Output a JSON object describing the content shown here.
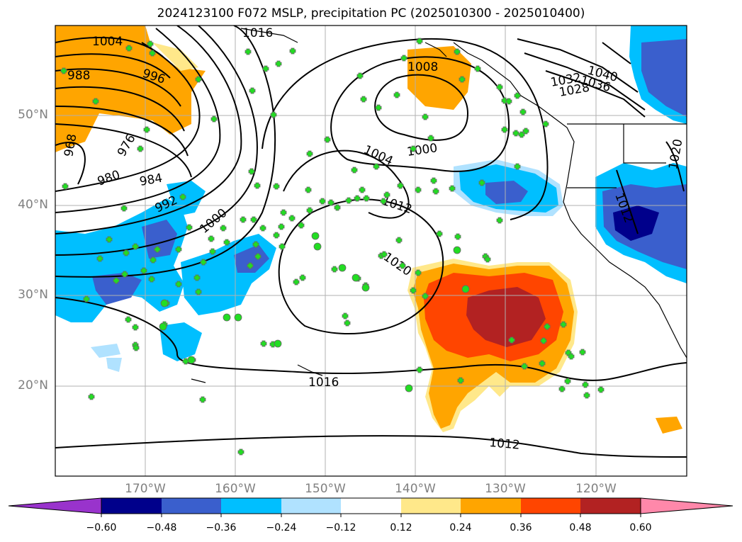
{
  "title": "2024123100 F072 MSLP, precipitation PC (2025010300 - 2025010400)",
  "lat_labels": [
    "50°N",
    "40°N",
    "30°N",
    "20°N"
  ],
  "lon_labels": [
    "170°W",
    "160°W",
    "150°W",
    "140°W",
    "130°W",
    "120°W"
  ],
  "contour_labels": [
    "1004",
    "988",
    "996",
    "968",
    "976",
    "980",
    "984",
    "992",
    "1000",
    "1016",
    "1008",
    "1004",
    "1000",
    "1012",
    "1020",
    "1016",
    "1012",
    "1032",
    "1028",
    "1036",
    "1040",
    "1020",
    "1012"
  ],
  "colorbar": {
    "ticks": [
      "−0.60",
      "−0.48",
      "−0.36",
      "−0.24",
      "−0.12",
      "0.12",
      "0.24",
      "0.36",
      "0.48",
      "0.60"
    ],
    "colors": [
      "#9933cc",
      "#00008b",
      "#3a5fcd",
      "#00bfff",
      "#b0e2ff",
      "#ffffff",
      "#ffe88a",
      "#ffa500",
      "#ff4500",
      "#b22222",
      "#ff88aa"
    ]
  },
  "colors": {
    "grid": "#b0b0b0",
    "contour": "#000000",
    "marker": "#22dd22"
  }
}
